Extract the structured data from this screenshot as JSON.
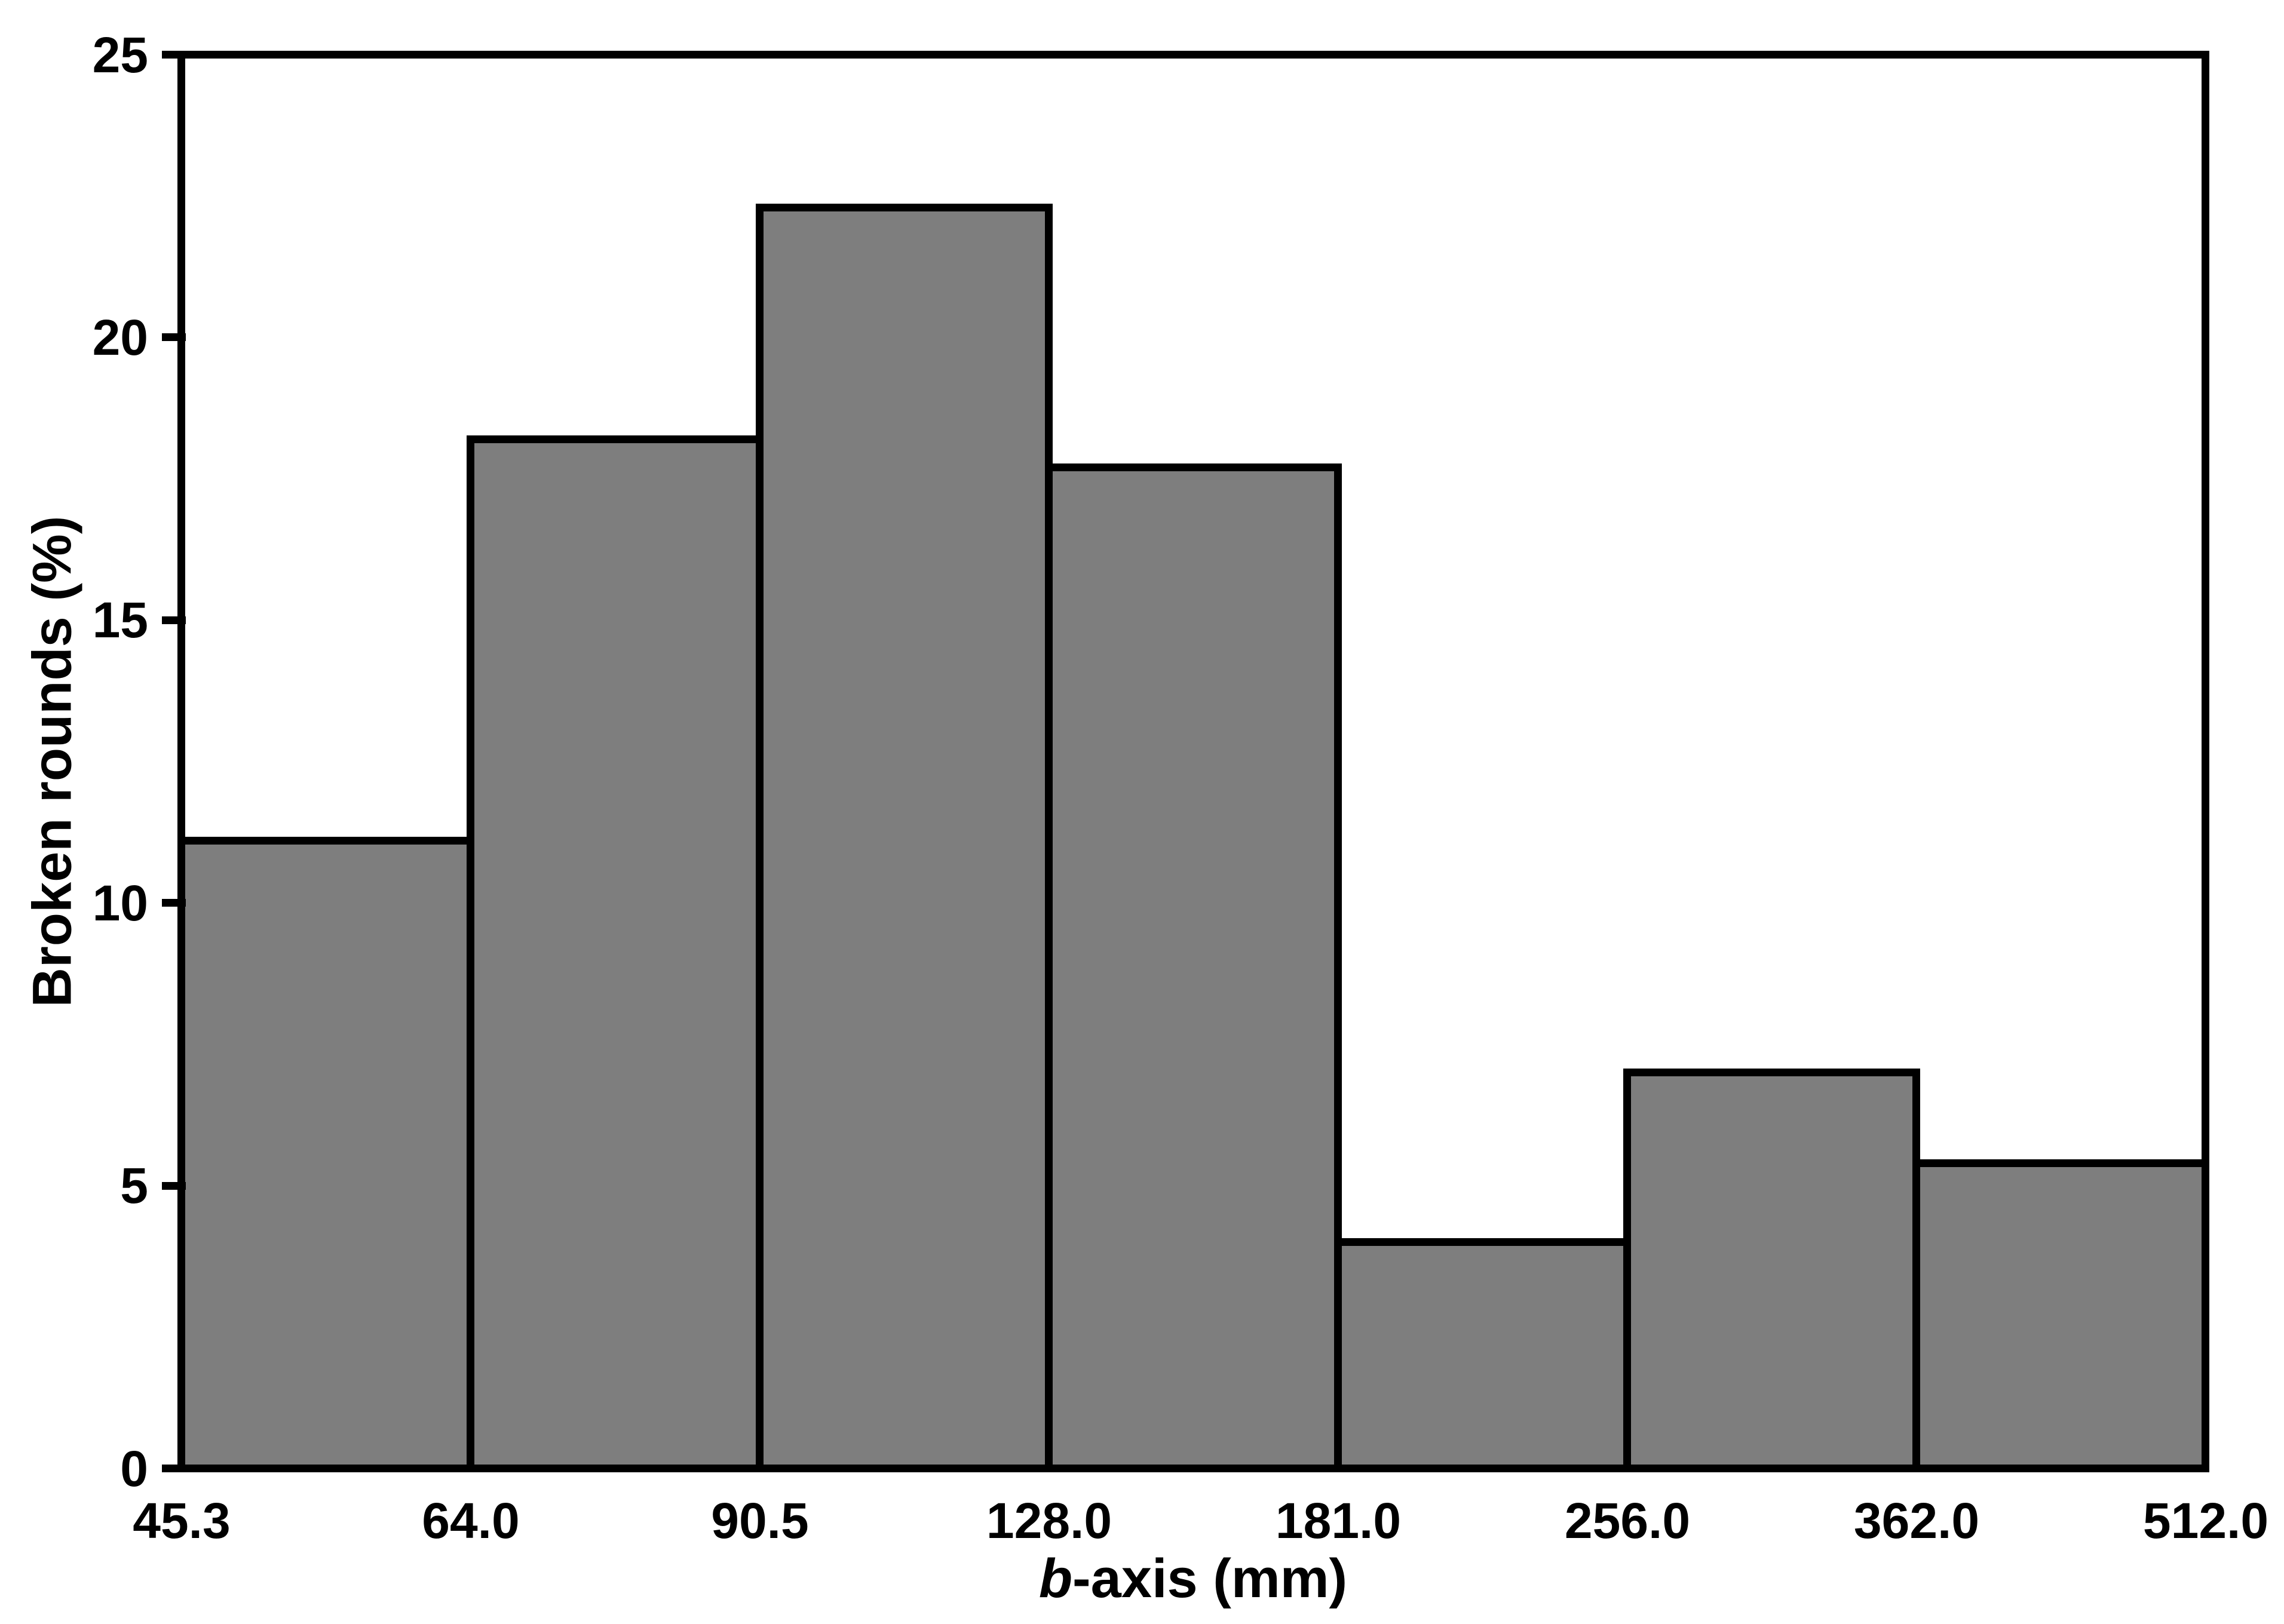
{
  "figure": {
    "background": "#ffffff",
    "frame_color": "#000000",
    "text_color": "#000000"
  },
  "chart_data": {
    "type": "bar",
    "subtype": "histogram",
    "title": "",
    "ylabel": "Broken rounds (%)",
    "xlabel_italic": "b",
    "xlabel_rest": "-axis (mm)",
    "bin_edges": [
      45.3,
      64.0,
      90.5,
      128.0,
      181.0,
      256.0,
      362.0,
      512.0
    ],
    "x_tick_labels": [
      "45.3",
      "64.0",
      "90.5",
      "128.0",
      "181.0",
      "256.0",
      "362.0",
      "512.0"
    ],
    "values": [
      11.1,
      18.2,
      22.3,
      17.7,
      4.0,
      7.0,
      5.4
    ],
    "y_ticks": [
      0,
      5,
      10,
      15,
      20,
      25
    ],
    "ylim": [
      0,
      25
    ],
    "bar_fill": "#7e7e7e",
    "bar_border": "#000000",
    "grid": false,
    "legend_position": "none"
  }
}
